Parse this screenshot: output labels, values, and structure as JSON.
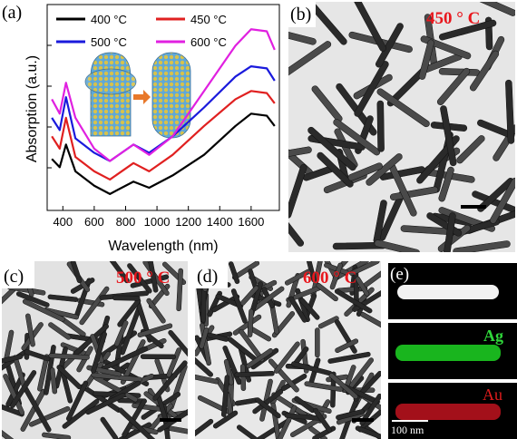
{
  "chart_data": {
    "type": "line",
    "label": "(a)",
    "xlabel": "Wavelength (nm)",
    "ylabel": "Absorption (a.u.)",
    "x": [
      330,
      380,
      420,
      480,
      600,
      700,
      850,
      950,
      1100,
      1300,
      1500,
      1600,
      1700,
      1750
    ],
    "xlim": [
      300,
      1780
    ],
    "xticks": [
      400,
      600,
      800,
      1000,
      1200,
      1400,
      1600
    ],
    "ylim": [
      0,
      1
    ],
    "series": [
      {
        "name": "400 °C",
        "color": "#000000",
        "values": [
          0.25,
          0.21,
          0.32,
          0.19,
          0.12,
          0.08,
          0.14,
          0.11,
          0.17,
          0.27,
          0.41,
          0.47,
          0.46,
          0.41
        ]
      },
      {
        "name": "450 °C",
        "color": "#e02020",
        "values": [
          0.36,
          0.3,
          0.45,
          0.26,
          0.19,
          0.15,
          0.23,
          0.19,
          0.27,
          0.41,
          0.54,
          0.58,
          0.57,
          0.52
        ]
      },
      {
        "name": "500 °C",
        "color": "#1a1adc",
        "values": [
          0.45,
          0.39,
          0.55,
          0.35,
          0.28,
          0.24,
          0.32,
          0.28,
          0.36,
          0.5,
          0.65,
          0.7,
          0.69,
          0.63
        ]
      },
      {
        "name": "600 °C",
        "color": "#e020e0",
        "values": [
          0.54,
          0.47,
          0.62,
          0.45,
          0.3,
          0.24,
          0.32,
          0.27,
          0.36,
          0.58,
          0.8,
          0.88,
          0.87,
          0.78
        ]
      }
    ]
  },
  "panels": {
    "b": {
      "label": "(b)",
      "annotation": "450 ° C"
    },
    "c": {
      "label": "(c)",
      "annotation": "500 ° C"
    },
    "d": {
      "label": "(d)",
      "annotation": "600 ° C"
    },
    "e": {
      "label": "(e)",
      "ag": "Ag",
      "au": "Au",
      "scale": "100 nm"
    }
  }
}
